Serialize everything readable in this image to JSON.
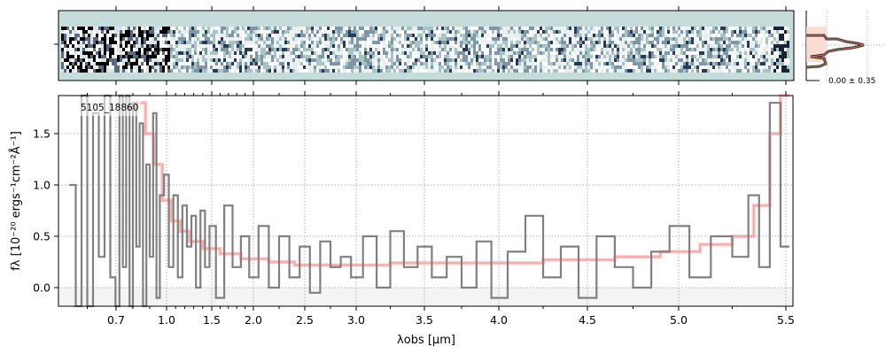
{
  "chart_data": {
    "type": "line",
    "object_label": "5105_18860",
    "xlabel": "λobs [μm]",
    "ylabel": "fλ [10⁻²⁰ ergs⁻¹cm⁻²Å⁻¹]",
    "ylim": [
      -0.18,
      1.87
    ],
    "xlim": [
      0.5,
      5.53
    ],
    "grid": true,
    "x_ticks": [
      "0.7",
      "1.0",
      "1.5",
      "2.0",
      "2.5",
      "3.0",
      "3.5",
      "4.0",
      "4.5",
      "5.0",
      "5.5"
    ],
    "y_ticks": [
      "0.0",
      "0.5",
      "1.0",
      "1.5"
    ],
    "series": [
      {
        "style": "step",
        "color": "#808080",
        "x": [
          0.55,
          0.57,
          0.59,
          0.61,
          0.63,
          0.65,
          0.67,
          0.69,
          0.71,
          0.73,
          0.75,
          0.77,
          0.79,
          0.81,
          0.83,
          0.85,
          0.87,
          0.89,
          0.91,
          0.93,
          0.95,
          0.97,
          1.0,
          1.05,
          1.1,
          1.15,
          1.2,
          1.25,
          1.3,
          1.35,
          1.4,
          1.45,
          1.5,
          1.6,
          1.7,
          1.8,
          1.9,
          2.0,
          2.1,
          2.2,
          2.3,
          2.4,
          2.5,
          2.6,
          2.7,
          2.8,
          2.9,
          3.0,
          3.1,
          3.2,
          3.3,
          3.4,
          3.5,
          3.6,
          3.7,
          3.8,
          3.9,
          4.0,
          4.1,
          4.2,
          4.3,
          4.4,
          4.5,
          4.6,
          4.7,
          4.8,
          4.9,
          5.0,
          5.1,
          5.2,
          5.3,
          5.35,
          5.4,
          5.45,
          5.5
        ],
        "y": [
          1.0,
          -0.3,
          2.0,
          -0.3,
          1.7,
          0.3,
          2.0,
          0.1,
          -0.3,
          2.0,
          0.2,
          1.9,
          -0.3,
          1.8,
          0.4,
          1.6,
          -0.2,
          1.2,
          0.3,
          1.7,
          -0.1,
          0.9,
          1.1,
          0.2,
          0.9,
          0.1,
          0.8,
          0.4,
          0.7,
          0.0,
          0.75,
          0.2,
          0.6,
          -0.1,
          0.8,
          0.2,
          0.5,
          0.1,
          0.6,
          0.0,
          0.5,
          0.1,
          0.4,
          -0.05,
          0.45,
          0.2,
          0.3,
          0.1,
          0.5,
          0.0,
          0.55,
          0.2,
          0.4,
          0.1,
          0.3,
          0.0,
          0.45,
          -0.1,
          0.35,
          0.7,
          0.1,
          0.4,
          -0.1,
          0.5,
          0.2,
          0.0,
          0.35,
          0.6,
          0.1,
          0.5,
          0.3,
          0.9,
          0.2,
          1.8,
          0.4
        ]
      },
      {
        "style": "step",
        "color": "#ffaaaa",
        "x": [
          0.8,
          0.85,
          0.9,
          0.95,
          1.0,
          1.1,
          1.2,
          1.3,
          1.5,
          1.7,
          2.0,
          2.3,
          2.5,
          3.0,
          3.5,
          4.0,
          4.5,
          4.8,
          5.0,
          5.2,
          5.3,
          5.4,
          5.45,
          5.5
        ],
        "y": [
          1.75,
          1.8,
          1.5,
          1.2,
          0.85,
          0.65,
          0.55,
          0.45,
          0.38,
          0.33,
          0.28,
          0.25,
          0.22,
          0.22,
          0.24,
          0.24,
          0.27,
          0.3,
          0.35,
          0.42,
          0.5,
          0.8,
          1.5,
          1.9
        ]
      }
    ],
    "histogram_label": "0.00 ± 0.35",
    "colors": {
      "data": "#808080",
      "model": "#ffaaaa",
      "panel_bg": "#c5dcdb"
    }
  }
}
